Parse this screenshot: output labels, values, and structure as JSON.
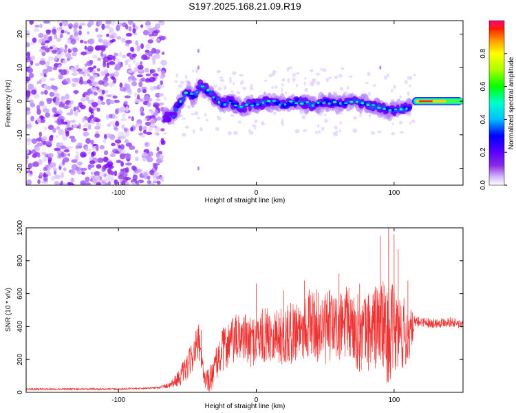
{
  "chart_data": [
    {
      "type": "heatmap",
      "title": "S197.2025.168.21.09.R19",
      "xlabel": "Height of straight line (km)",
      "ylabel": "Frequency (Hz)",
      "xlim": [
        -167,
        150
      ],
      "ylim": [
        -25,
        24
      ],
      "xticks": [
        -100,
        0,
        100
      ],
      "yticks": [
        -20,
        -10,
        0,
        10,
        20
      ],
      "colorbar": {
        "label": "Normalized spectral amplitude",
        "range": [
          0,
          1
        ],
        "ticks": [
          "0.0",
          "0.2",
          "0.4",
          "0.6",
          "0.8"
        ],
        "colors": [
          "#ffffff",
          "#d6b8ff",
          "#7b00ff",
          "#0000ff",
          "#00ffff",
          "#00ff00",
          "#ffff00",
          "#ff8000",
          "#ff0000",
          "#ff0080"
        ]
      },
      "noise_region_x": [
        -167,
        -67
      ],
      "ridge": {
        "x": [
          -67,
          -60,
          -55,
          -50,
          -45,
          -40,
          -35,
          -30,
          -25,
          -20,
          -15,
          -10,
          -5,
          0,
          10,
          20,
          30,
          40,
          50,
          60,
          70,
          80,
          90,
          100,
          110,
          120,
          130,
          140,
          150
        ],
        "y": [
          -5,
          -4,
          0,
          3,
          1,
          5,
          3,
          1,
          -1,
          0,
          -1,
          -2,
          -1,
          -1,
          0,
          -1,
          0,
          -1,
          0,
          -1,
          0,
          -1,
          -2,
          -3,
          -2,
          -1,
          0,
          0,
          0
        ]
      }
    },
    {
      "type": "line",
      "xlabel": "Height of straight line (km)",
      "ylabel": "SNR (10 * v/v)",
      "xlim": [
        -167,
        150
      ],
      "ylim": [
        0,
        1000
      ],
      "xticks": [
        -100,
        0,
        100
      ],
      "yticks": [
        0,
        200,
        400,
        600,
        800,
        1000
      ],
      "series": [
        {
          "color": "#ee3333",
          "x": [
            -167,
            -140,
            -120,
            -100,
            -80,
            -70,
            -65,
            -60,
            -55,
            -50,
            -45,
            -42,
            -40,
            -38,
            -35,
            -30,
            -25,
            -20,
            -15,
            -10,
            -5,
            0,
            5,
            10,
            15,
            20,
            25,
            30,
            35,
            40,
            45,
            50,
            55,
            60,
            65,
            70,
            75,
            80,
            85,
            90,
            95,
            100,
            105,
            110,
            115,
            120,
            130,
            140,
            150
          ],
          "y": [
            20,
            20,
            20,
            20,
            25,
            30,
            40,
            60,
            100,
            150,
            250,
            300,
            200,
            100,
            60,
            150,
            250,
            300,
            320,
            350,
            300,
            330,
            340,
            360,
            350,
            330,
            360,
            390,
            400,
            430,
            400,
            380,
            410,
            380,
            420,
            400,
            350,
            370,
            390,
            420,
            350,
            380,
            360,
            340,
            420,
            430,
            420,
            430,
            410
          ],
          "noise": [
            5,
            5,
            5,
            5,
            5,
            8,
            15,
            30,
            60,
            80,
            100,
            120,
            100,
            50,
            80,
            100,
            130,
            150,
            150,
            150,
            150,
            160,
            170,
            170,
            170,
            180,
            190,
            190,
            200,
            220,
            220,
            220,
            230,
            220,
            230,
            230,
            240,
            240,
            260,
            280,
            300,
            280,
            250,
            200,
            40,
            30,
            30,
            30,
            30
          ],
          "spikes": [
            [
              -40,
              380
            ],
            [
              0,
              660
            ],
            [
              20,
              620
            ],
            [
              35,
              680
            ],
            [
              60,
              720
            ],
            [
              75,
              660
            ],
            [
              90,
              950
            ],
            [
              96,
              1000
            ],
            [
              100,
              960
            ],
            [
              103,
              870
            ],
            [
              110,
              680
            ]
          ]
        }
      ]
    }
  ]
}
